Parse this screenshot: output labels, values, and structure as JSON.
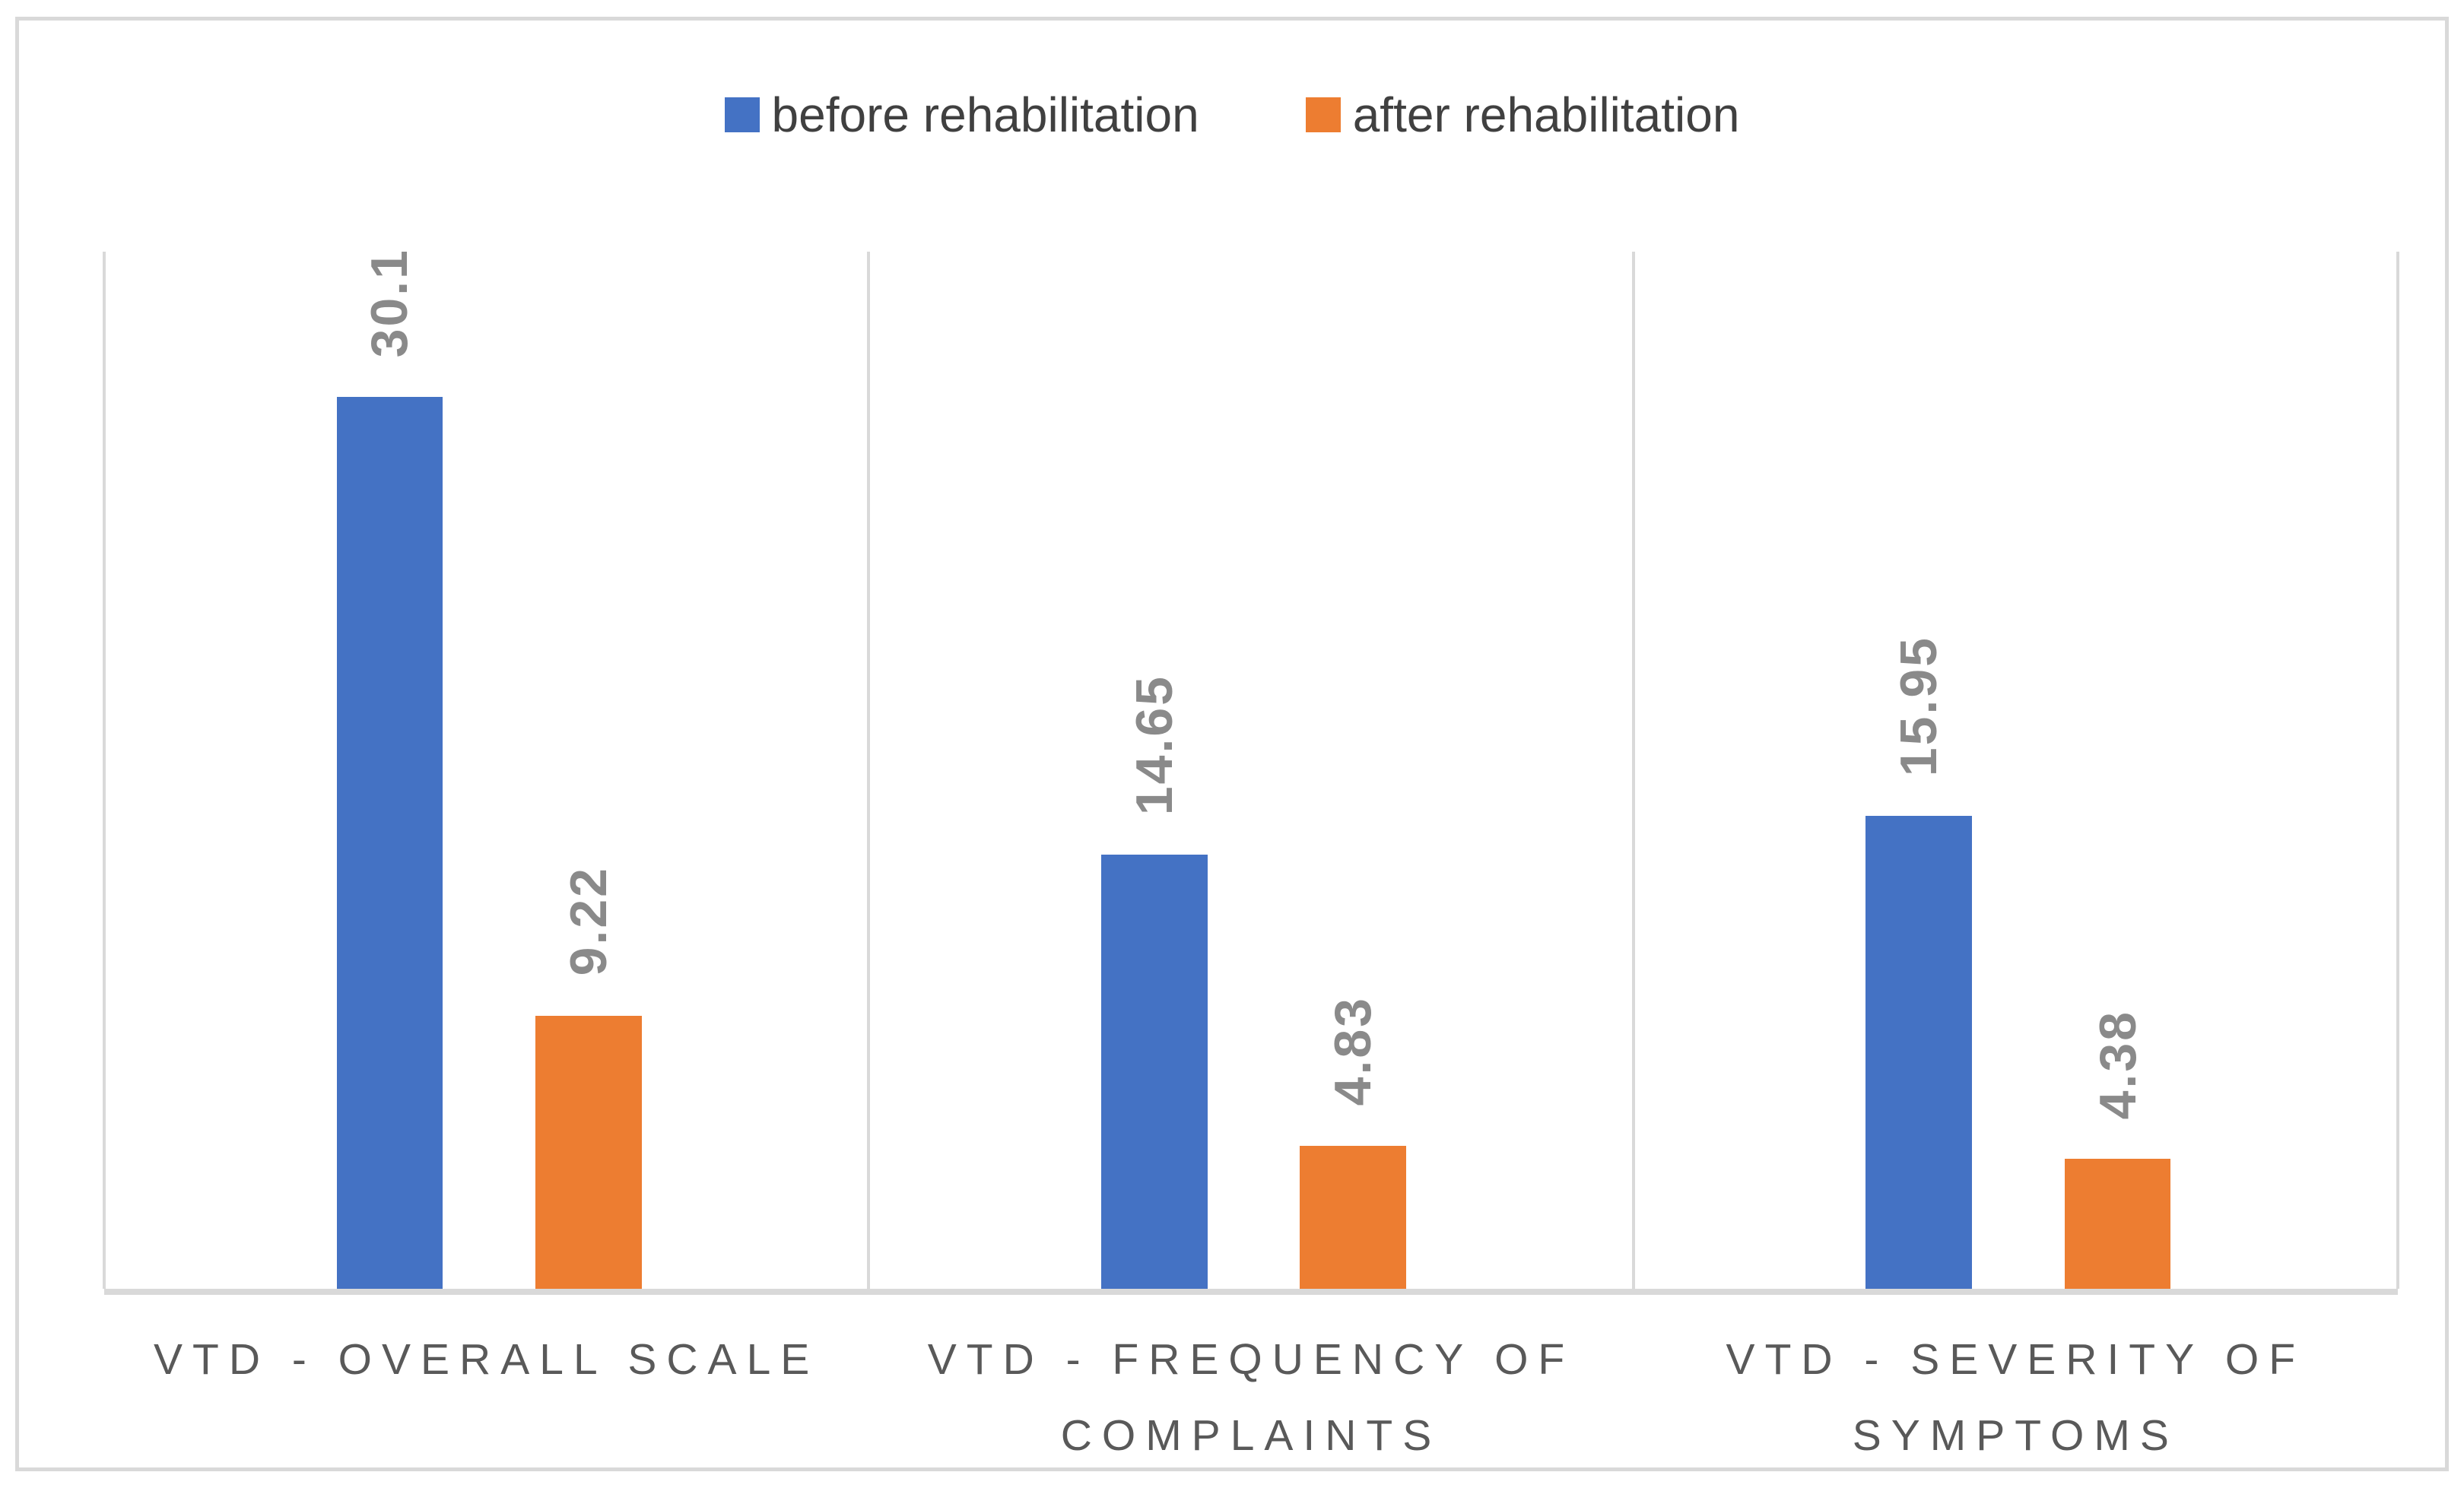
{
  "chart_data": {
    "type": "bar",
    "title": "",
    "categories": [
      "VTD - OVERALL SCALE",
      "VTD - FREQUENCY OF COMPLAINTS",
      "VTD - SEVERITY OF SYMPTOMS"
    ],
    "series": [
      {
        "name": "before rehabilitation",
        "color": "#4472C4",
        "values": [
          30.1,
          14.65,
          15.95
        ],
        "labels": [
          "30.1",
          "14.65",
          "15.95"
        ]
      },
      {
        "name": "after rehabilitation",
        "color": "#ED7D31",
        "values": [
          9.22,
          4.83,
          4.38
        ],
        "labels": [
          "9.22",
          "4.83",
          "4.38"
        ]
      }
    ],
    "value_axis": {
      "min": 0,
      "max": 35,
      "labels_visible": false
    },
    "category_axis": {
      "labels_visible": true
    },
    "data_labels": {
      "visible": true,
      "rotation_deg": 90,
      "position": "above-bar"
    },
    "legend_position": "top",
    "grid": "vertical category separator lines, no horizontal gridlines"
  },
  "styles": {
    "bar_before_color": "#4472C4",
    "bar_after_color": "#ED7D31",
    "gridline_color": "#D9D9D9",
    "axis_line_color": "#D9D9D9",
    "frame_border_color": "#D9D9D9",
    "legend_text_color": "#404040",
    "category_text_color": "#595959",
    "data_label_color": "#8A8A8A",
    "background_color": "#FFFFFF"
  }
}
